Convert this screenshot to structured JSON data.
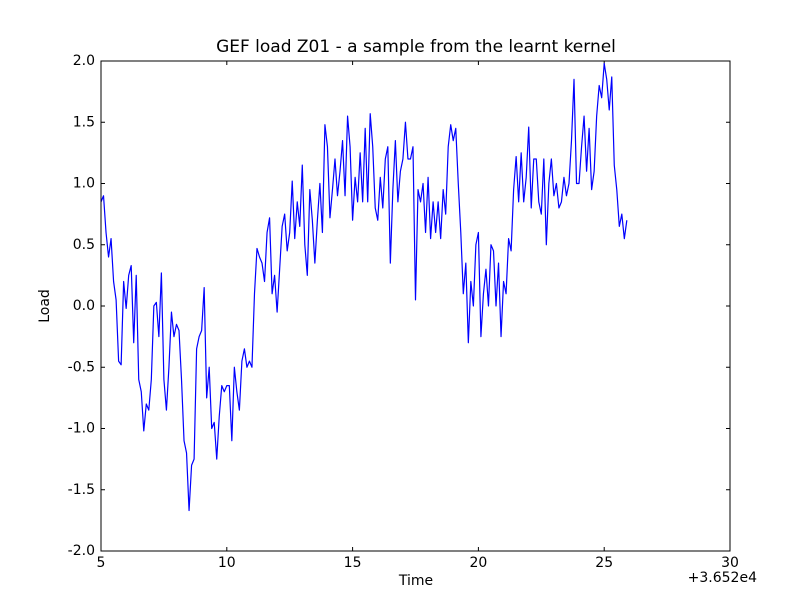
{
  "chart_data": {
    "type": "line",
    "title": "GEF load Z01 - a sample from the learnt kernel",
    "x_label": "Time",
    "y_label": "Load",
    "x_offset_label": "+3.652e4",
    "x": [
      5.0,
      5.1,
      5.2,
      5.3,
      5.4,
      5.5,
      5.6,
      5.7,
      5.8,
      5.9,
      6.0,
      6.1,
      6.2,
      6.3,
      6.4,
      6.5,
      6.6,
      6.7,
      6.8,
      6.9,
      7.0,
      7.1,
      7.2,
      7.3,
      7.4,
      7.5,
      7.6,
      7.7,
      7.8,
      7.9,
      8.0,
      8.1,
      8.2,
      8.3,
      8.4,
      8.5,
      8.6,
      8.7,
      8.8,
      8.9,
      9.0,
      9.1,
      9.2,
      9.3,
      9.4,
      9.5,
      9.6,
      9.7,
      9.8,
      9.9,
      10.0,
      10.1,
      10.2,
      10.3,
      10.4,
      10.5,
      10.6,
      10.7,
      10.8,
      10.9,
      11.0,
      11.1,
      11.2,
      11.3,
      11.4,
      11.5,
      11.6,
      11.7,
      11.8,
      11.9,
      12.0,
      12.1,
      12.2,
      12.3,
      12.4,
      12.5,
      12.6,
      12.7,
      12.8,
      12.9,
      13.0,
      13.1,
      13.2,
      13.3,
      13.4,
      13.5,
      13.6,
      13.7,
      13.8,
      13.9,
      14.0,
      14.1,
      14.2,
      14.3,
      14.4,
      14.5,
      14.6,
      14.7,
      14.8,
      14.9,
      15.0,
      15.1,
      15.2,
      15.3,
      15.4,
      15.5,
      15.6,
      15.7,
      15.8,
      15.9,
      16.0,
      16.1,
      16.2,
      16.3,
      16.4,
      16.5,
      16.6,
      16.7,
      16.8,
      16.9,
      17.0,
      17.1,
      17.2,
      17.3,
      17.4,
      17.5,
      17.6,
      17.7,
      17.8,
      17.9,
      18.0,
      18.1,
      18.2,
      18.3,
      18.4,
      18.5,
      18.6,
      18.7,
      18.8,
      18.9,
      19.0,
      19.1,
      19.2,
      19.3,
      19.4,
      19.5,
      19.6,
      19.7,
      19.8,
      19.9,
      20.0,
      20.1,
      20.2,
      20.3,
      20.4,
      20.5,
      20.6,
      20.7,
      20.8,
      20.9,
      21.0,
      21.1,
      21.2,
      21.3,
      21.4,
      21.5,
      21.6,
      21.7,
      21.8,
      21.9,
      22.0,
      22.1,
      22.2,
      22.3,
      22.4,
      22.5,
      22.6,
      22.7,
      22.8,
      22.9,
      23.0,
      23.1,
      23.2,
      23.3,
      23.4,
      23.5,
      23.6,
      23.7,
      23.8,
      23.9,
      24.0,
      24.1,
      24.2,
      24.3,
      24.4,
      24.5,
      24.6,
      24.7,
      24.8,
      24.9,
      25.0,
      25.1,
      25.2,
      25.3,
      25.4,
      25.5,
      25.6,
      25.7,
      25.8,
      25.9
    ],
    "series": [
      {
        "color": "#0000ff",
        "values": [
          0.85,
          0.9,
          0.6,
          0.4,
          0.55,
          0.2,
          0.05,
          -0.45,
          -0.48,
          0.2,
          -0.02,
          0.25,
          0.33,
          -0.3,
          0.25,
          -0.6,
          -0.7,
          -1.02,
          -0.8,
          -0.85,
          -0.6,
          0.0,
          0.03,
          -0.25,
          0.27,
          -0.6,
          -0.85,
          -0.5,
          -0.05,
          -0.25,
          -0.15,
          -0.2,
          -0.6,
          -1.1,
          -1.2,
          -1.67,
          -1.3,
          -1.25,
          -0.35,
          -0.25,
          -0.2,
          0.15,
          -0.75,
          -0.5,
          -1.0,
          -0.95,
          -1.25,
          -0.9,
          -0.65,
          -0.7,
          -0.65,
          -0.65,
          -1.1,
          -0.5,
          -0.7,
          -0.85,
          -0.45,
          -0.35,
          -0.5,
          -0.45,
          -0.5,
          0.1,
          0.47,
          0.4,
          0.35,
          0.2,
          0.6,
          0.72,
          0.1,
          0.25,
          -0.05,
          0.3,
          0.65,
          0.75,
          0.45,
          0.6,
          1.02,
          0.55,
          0.85,
          0.65,
          1.15,
          0.5,
          0.25,
          0.95,
          0.7,
          0.35,
          0.7,
          1.0,
          0.6,
          1.48,
          1.3,
          0.72,
          0.95,
          1.2,
          0.9,
          1.1,
          1.35,
          0.9,
          1.55,
          1.3,
          0.7,
          1.05,
          0.85,
          1.25,
          0.85,
          1.45,
          0.85,
          1.57,
          1.3,
          0.8,
          0.7,
          1.05,
          0.8,
          1.2,
          1.3,
          0.35,
          0.95,
          1.35,
          0.85,
          1.1,
          1.2,
          1.5,
          1.2,
          1.2,
          1.3,
          0.05,
          0.95,
          0.85,
          1.0,
          0.6,
          1.05,
          0.55,
          0.85,
          0.6,
          0.85,
          0.55,
          0.95,
          0.75,
          1.3,
          1.48,
          1.35,
          1.45,
          1.0,
          0.6,
          0.1,
          0.35,
          -0.3,
          0.2,
          0.0,
          0.5,
          0.6,
          -0.25,
          0.1,
          0.3,
          0.0,
          0.5,
          0.45,
          0.0,
          0.35,
          -0.25,
          0.2,
          0.1,
          0.55,
          0.45,
          0.95,
          1.22,
          0.85,
          1.25,
          0.85,
          1.05,
          1.46,
          0.8,
          1.2,
          1.2,
          0.85,
          0.75,
          1.2,
          0.5,
          1.0,
          1.2,
          0.9,
          1.0,
          0.8,
          0.85,
          1.05,
          0.9,
          1.0,
          1.35,
          1.85,
          1.0,
          1.0,
          1.3,
          1.55,
          1.1,
          1.45,
          0.95,
          1.1,
          1.55,
          1.8,
          1.7,
          1.98,
          1.85,
          1.6,
          1.87,
          1.15,
          0.95,
          0.65,
          0.75,
          0.55,
          0.7
        ]
      }
    ],
    "xlim": [
      5,
      30
    ],
    "xticks": [
      5,
      10,
      15,
      20,
      25,
      30
    ],
    "ylim": [
      -2,
      2
    ],
    "yticks": [
      {
        "value": -2,
        "label": "-2.0"
      },
      {
        "value": -1.5,
        "label": "-1.5"
      },
      {
        "value": -1,
        "label": "-1.0"
      },
      {
        "value": -0.5,
        "label": "-0.5"
      },
      {
        "value": 0,
        "label": "0.0"
      },
      {
        "value": 0.5,
        "label": "0.5"
      },
      {
        "value": 1,
        "label": "1.0"
      },
      {
        "value": 1.5,
        "label": "1.5"
      },
      {
        "value": 2,
        "label": "2.0"
      }
    ],
    "grid": false
  }
}
